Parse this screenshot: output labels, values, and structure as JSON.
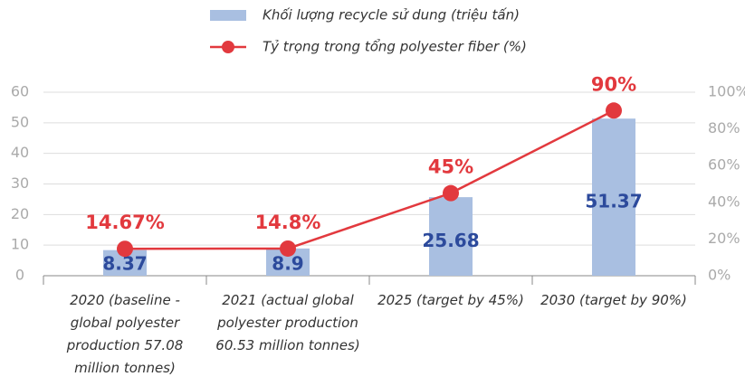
{
  "chart_data": {
    "type": "bar",
    "categories": [
      "2020 (baseline - global polyester production 57.08 million tonnes)",
      "2021 (actual global polyester production 60.53 million tonnes)",
      "2025 (target by 45%)",
      "2030 (target by 90%)"
    ],
    "series": [
      {
        "name": "Khối lượng recycle sử dung (triệu tấn)",
        "type": "bar",
        "color": "#a9bfe1",
        "values": [
          8.37,
          8.9,
          25.68,
          51.37
        ]
      },
      {
        "name": "Tỷ trọng trong tổng polyester fiber (%)",
        "type": "line",
        "axis": "y2",
        "color": "#e2393e",
        "values": [
          14.67,
          14.8,
          45,
          90
        ],
        "value_labels": [
          "14.67%",
          "14.8%",
          "45%",
          "90%"
        ]
      }
    ],
    "ylim": [
      0,
      60
    ],
    "yticks": [
      0,
      10,
      20,
      30,
      40,
      50,
      60
    ],
    "y2lim": [
      0,
      100
    ],
    "y2ticks": [
      {
        "value": 0,
        "label": "0%"
      },
      {
        "value": 20,
        "label": "20%"
      },
      {
        "value": 40,
        "label": "40%"
      },
      {
        "value": 60,
        "label": "60%"
      },
      {
        "value": 80,
        "label": "80%"
      },
      {
        "value": 100,
        "label": "100%"
      }
    ],
    "grid": true
  }
}
